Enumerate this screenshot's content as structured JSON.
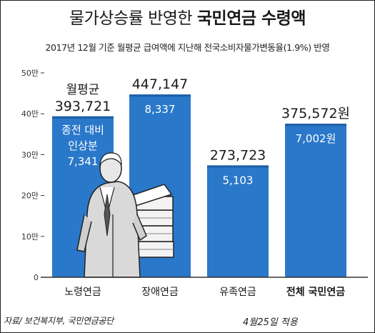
{
  "header": {
    "title_normal": "물가상승률 반영한",
    "title_bold": "국민연금 수령액",
    "subtitle": "2017년 12월 기준 월평균 급여액에 지난해 전국소비자물가변동율(1.9%) 반영"
  },
  "footer": {
    "source": "자료/ 보건복지부, 국민연금공단",
    "applied": "4월25일 적용"
  },
  "colors": {
    "bar": "#2a78c9",
    "bar_top": "#1d5fa6",
    "text": "#1a1a1a",
    "axis": "#333333"
  },
  "chart_data": {
    "type": "bar",
    "categories": [
      "노령연금",
      "장애연금",
      "유족연금",
      "전체 국민연금"
    ],
    "values": [
      393721,
      447147,
      273723,
      375572
    ],
    "value_labels": [
      "393,721",
      "447,147",
      "273,723",
      "375,572원"
    ],
    "increase_values": [
      7341,
      8337,
      5103,
      7002
    ],
    "increase_labels": [
      "7,341",
      "8,337",
      "5,103",
      "7,002원"
    ],
    "first_bar_value_caption": "월평균",
    "first_bar_increase_caption": [
      "종전 대비",
      "인상분"
    ],
    "yticks": [
      0,
      100000,
      200000,
      300000,
      400000,
      500000
    ],
    "ytick_labels": [
      "0",
      "10만",
      "20만",
      "30만",
      "40만",
      "50만"
    ],
    "ylim": [
      0,
      500000
    ],
    "emphasized_category": "전체 국민연금",
    "grid": false,
    "illustration": "elderly-man-with-money-stacks"
  }
}
